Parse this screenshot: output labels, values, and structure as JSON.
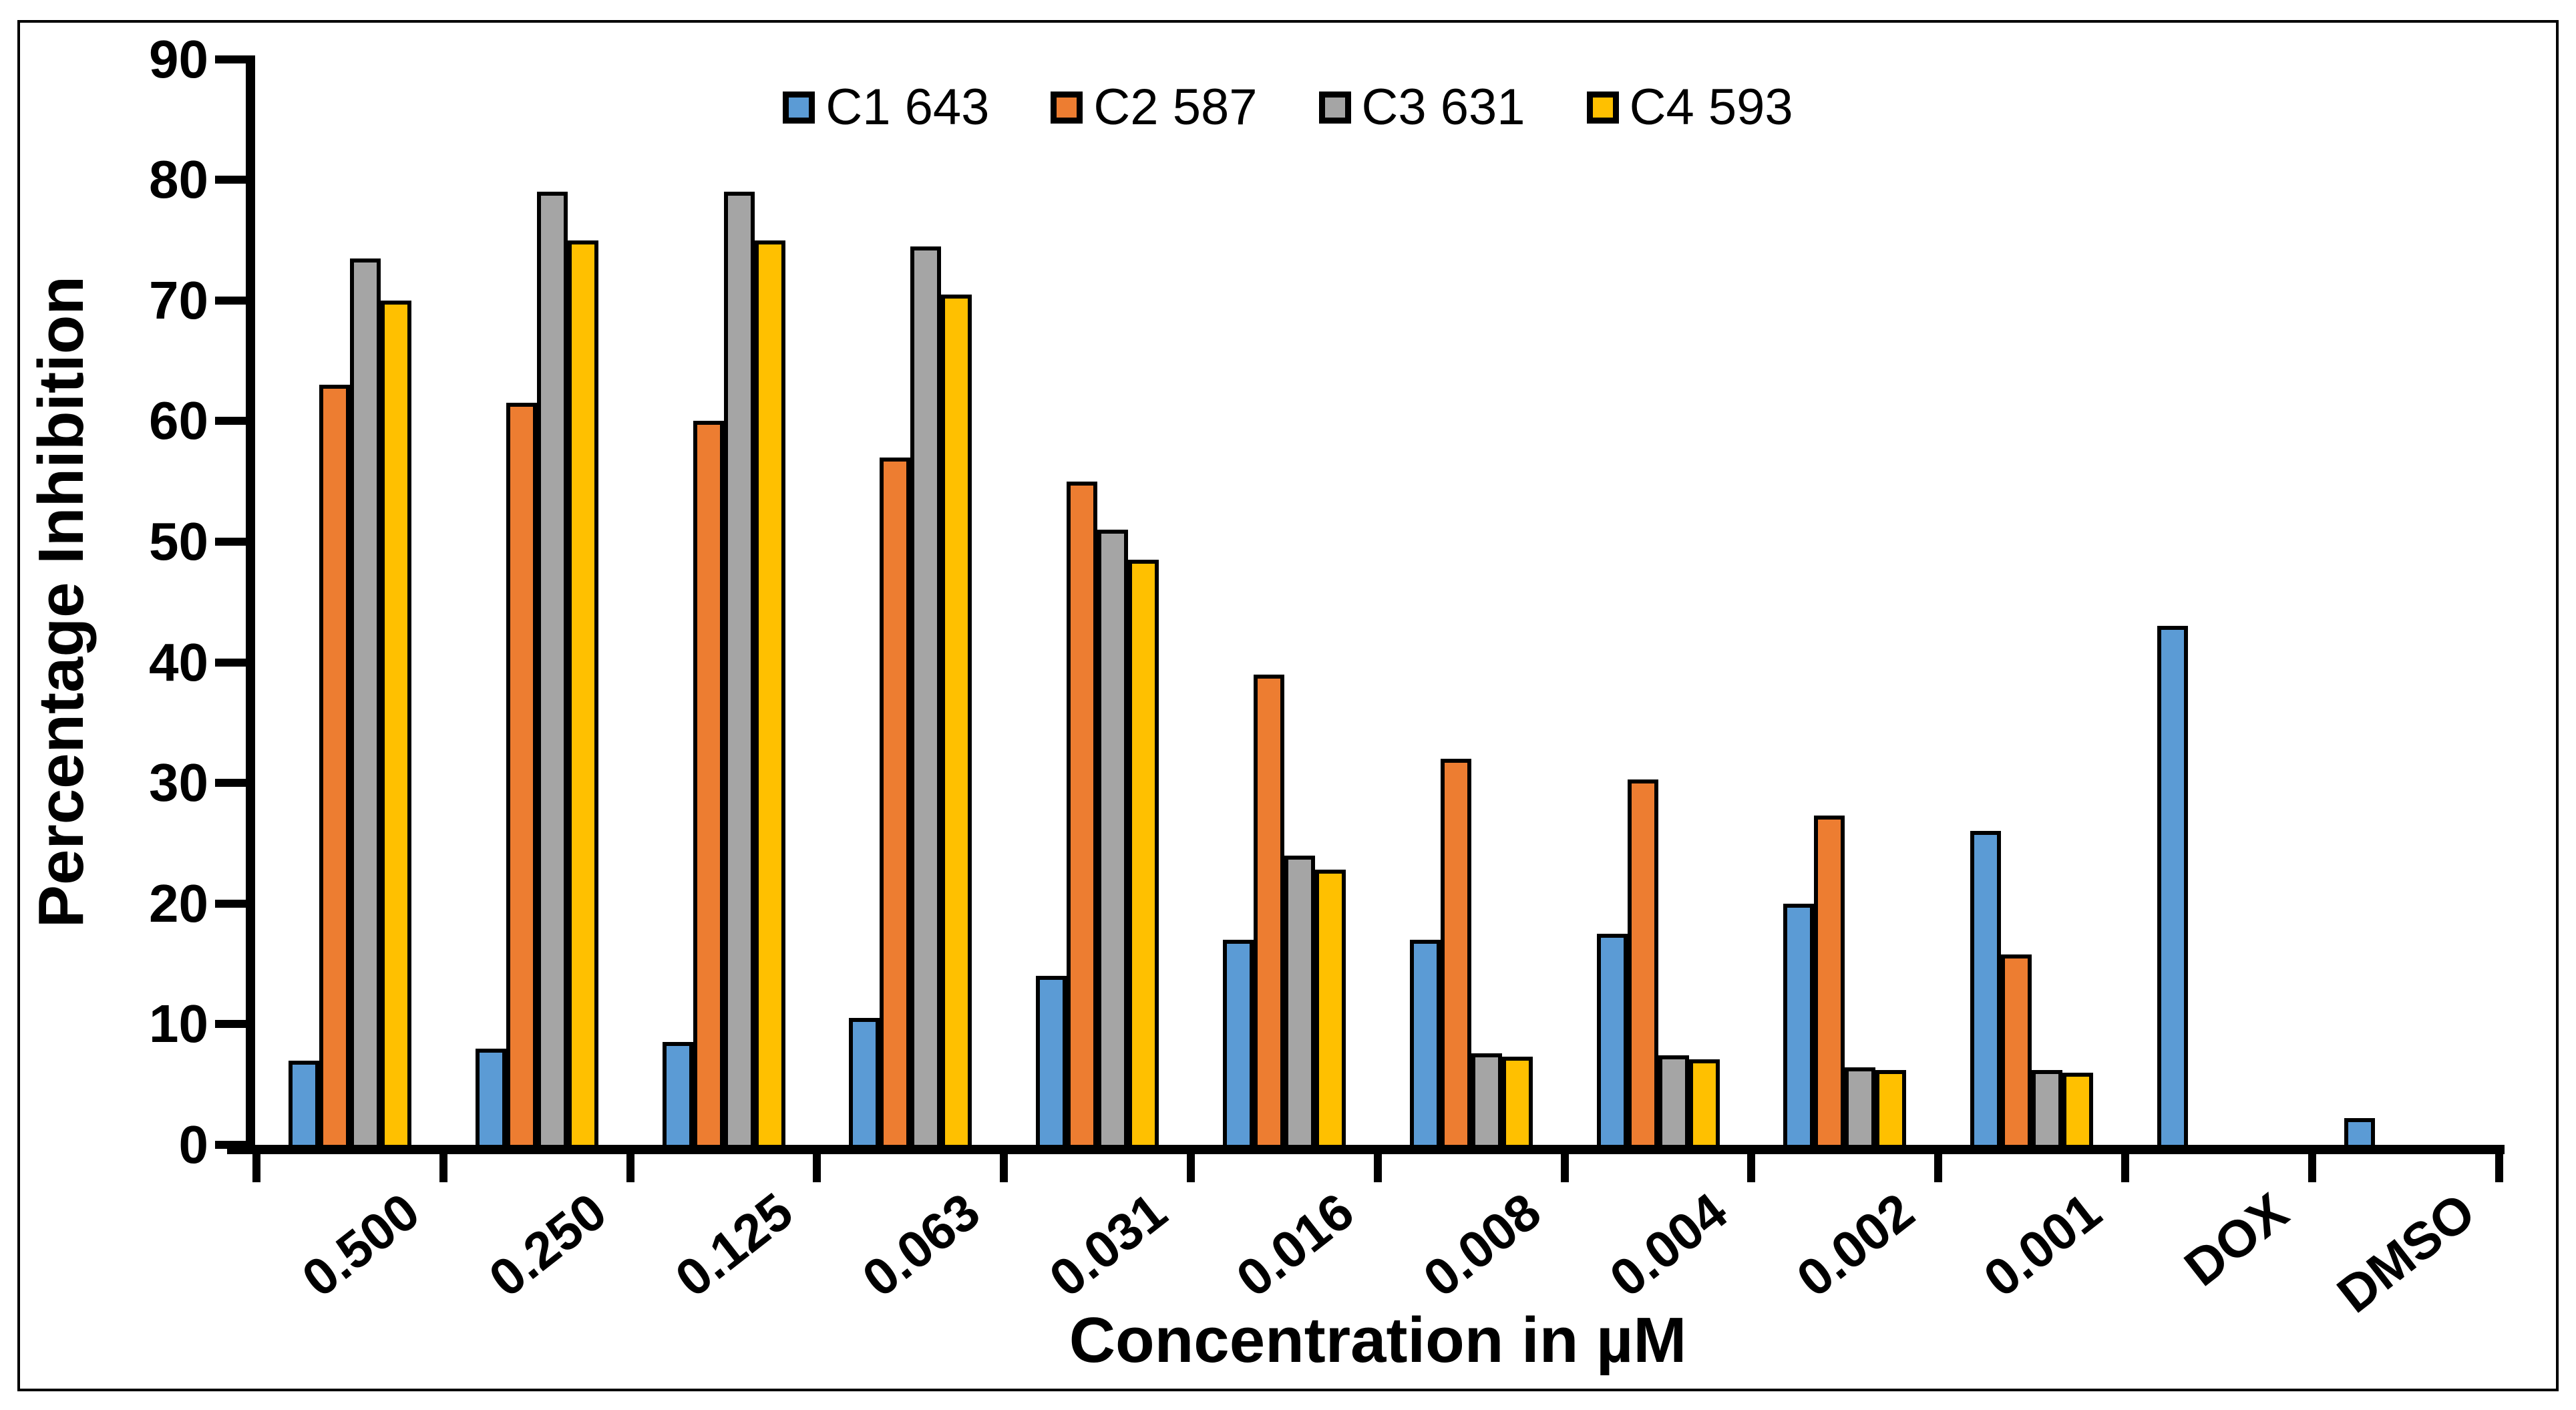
{
  "figure": {
    "background": "#ffffff",
    "border_color": "#000000"
  },
  "legend": {
    "entries": [
      "C1 643",
      "C2 587",
      "C3 631",
      "C4 593"
    ]
  },
  "chart_data": {
    "type": "bar",
    "title": "",
    "xlabel": "Concentration in µM",
    "ylabel": "Percentage Inhibition",
    "ylim": [
      0,
      90
    ],
    "ytick_step": 10,
    "ytick_labels": [
      "0",
      "10",
      "20",
      "30",
      "40",
      "50",
      "60",
      "70",
      "80",
      "90"
    ],
    "grid": false,
    "legend_position": "top-center",
    "bar_border_color": "#000000",
    "categories": [
      "0.500",
      "0.250",
      "0.125",
      "0.063",
      "0.031",
      "0.016",
      "0.008",
      "0.004",
      "0.002",
      "0.001",
      "DOX",
      "DMSO"
    ],
    "series": [
      {
        "name": "C1 643",
        "color": "#5B9BD5",
        "values": [
          7.0,
          8.0,
          8.5,
          10.5,
          14.0,
          17.0,
          17.0,
          17.5,
          20.0,
          26.0,
          43.0,
          2.2
        ]
      },
      {
        "name": "C2 587",
        "color": "#ED7D31",
        "values": [
          63.0,
          61.5,
          60.0,
          57.0,
          55.0,
          39.0,
          32.0,
          30.3,
          27.3,
          15.8,
          null,
          null
        ]
      },
      {
        "name": "C3 631",
        "color": "#A5A5A5",
        "values": [
          73.5,
          79.0,
          79.0,
          74.5,
          51.0,
          24.0,
          7.6,
          7.4,
          6.4,
          6.2,
          null,
          null
        ]
      },
      {
        "name": "C4 593",
        "color": "#FFC000",
        "values": [
          70.0,
          75.0,
          75.0,
          70.5,
          48.5,
          22.8,
          7.3,
          7.1,
          6.2,
          6.0,
          null,
          null
        ]
      }
    ]
  }
}
